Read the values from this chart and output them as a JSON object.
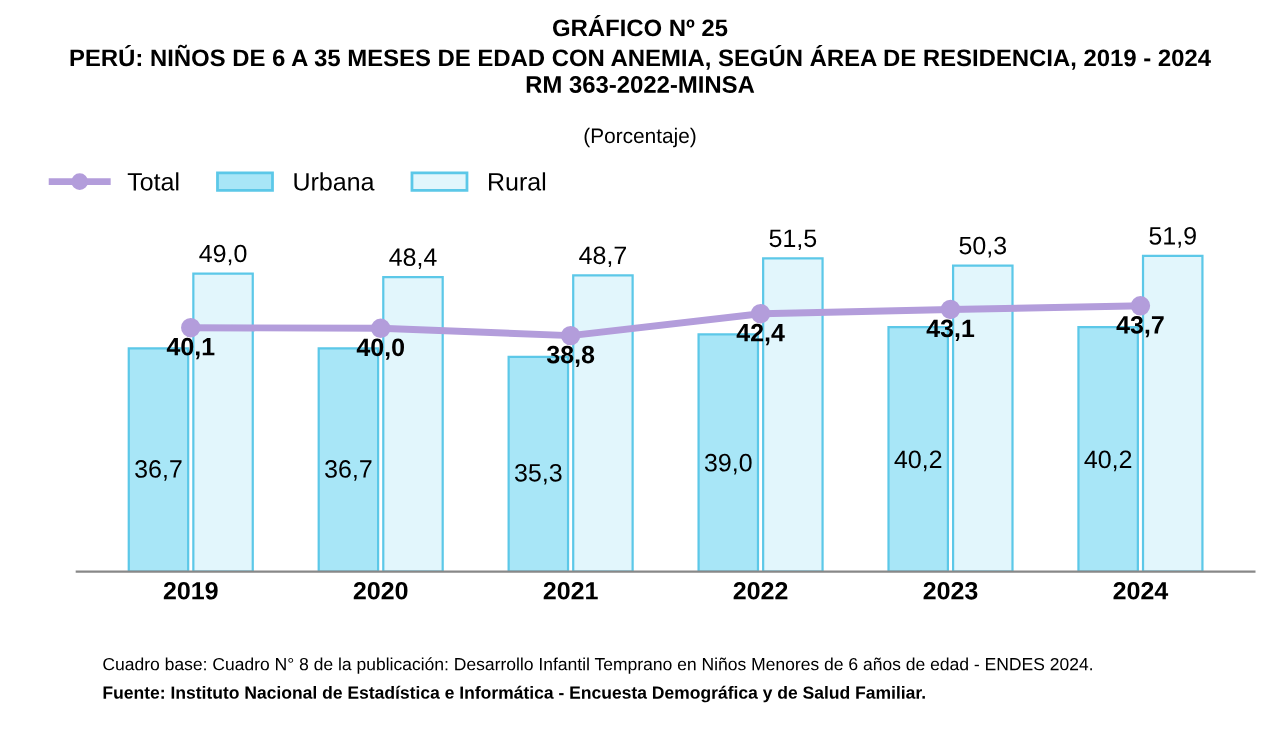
{
  "chart_data": {
    "type": "bar",
    "title": "GRÁFICO Nº 25\nPERÚ: NIÑOS DE 6 A 35 MESES DE EDAD CON ANEMIA, SEGÚN ÁREA DE RESIDENCIA, 2019 - 2024\nRM 363-2022-MINSA",
    "subtitle": "(Porcentaje)",
    "categories": [
      "2019",
      "2020",
      "2021",
      "2022",
      "2023",
      "2024"
    ],
    "series": [
      {
        "name": "Total",
        "type": "line",
        "color": "#b39ddb",
        "marker": "circle",
        "values": [
          40.1,
          40.0,
          38.8,
          42.4,
          43.1,
          43.7
        ],
        "value_labels": [
          "40,1",
          "40,0",
          "38,8",
          "42,4",
          "43,1",
          "43,7"
        ]
      },
      {
        "name": "Urbana",
        "color": "#a8e6f7",
        "values": [
          36.7,
          36.7,
          35.3,
          39.0,
          40.2,
          40.2
        ],
        "value_labels": [
          "36,7",
          "36,7",
          "35,3",
          "39,0",
          "40,2",
          "40,2"
        ]
      },
      {
        "name": "Rural",
        "color": "#e2f6fc",
        "values": [
          49.0,
          48.4,
          48.7,
          51.5,
          50.3,
          51.9
        ],
        "value_labels": [
          "49,0",
          "48,4",
          "48,7",
          "51,5",
          "50,3",
          "51,9"
        ]
      }
    ],
    "legend": "top left",
    "annotations": [
      "Cuadro base: Cuadro N° 8 de la publicación: Desarrollo Infantil Temprano en Niños Menores de 6 años de edad - ENDES 2024.",
      "Fuente: Instituto Nacional de Estadística e Informática - Encuesta Demográfica y de Salud Familiar."
    ]
  }
}
